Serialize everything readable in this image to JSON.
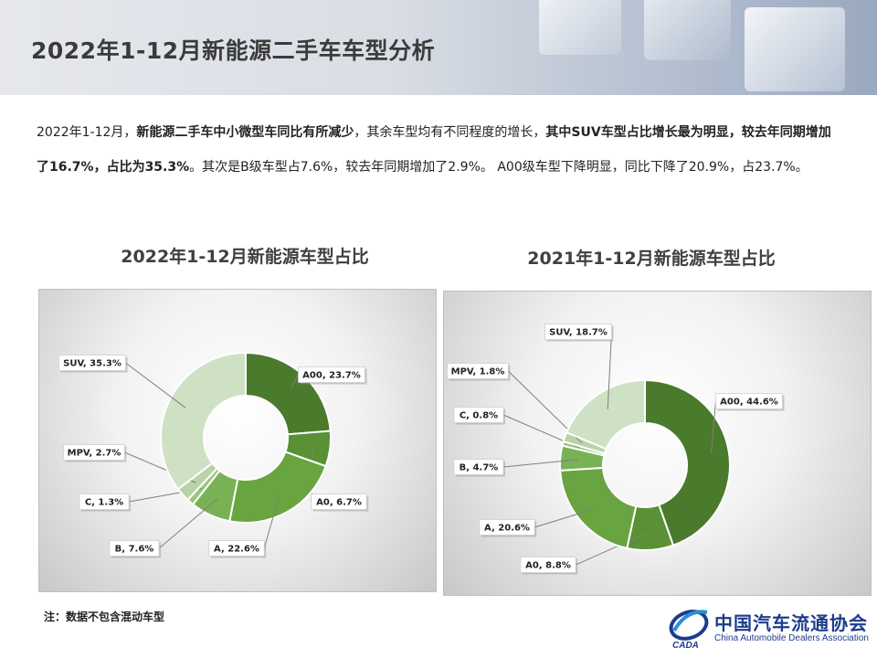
{
  "title": "2022年1-12月新能源二手车车型分析",
  "summary": {
    "p1": "2022年1-12月，",
    "b1": "新能源二手车中小微型车同比有所减少",
    "p2": "，其余车型均有不同程度的增长，",
    "b2": "其中SUV车型占比增长最为明显，较去年同期增加了16.7%，占比为35.3%",
    "p3": "。其次是B级车型占7.6%，较去年同期增加了2.9%。 A00级车型下降明显，同比下降了20.9%，占23.7%。"
  },
  "note": "注：数据不包含混动车型",
  "logo": {
    "cn": "中国汽车流通协会",
    "en": "China Automobile Dealers Association",
    "mark_text": "CADA"
  },
  "chart_data": [
    {
      "type": "pie",
      "style": "donut",
      "title": "2022年1-12月新能源车型占比",
      "categories": [
        "A00",
        "A0",
        "A",
        "B",
        "C",
        "MPV",
        "SUV"
      ],
      "values": [
        23.7,
        6.7,
        22.6,
        7.6,
        1.3,
        2.7,
        35.3
      ],
      "colors": [
        "#4a7a2c",
        "#5a9134",
        "#68a43f",
        "#79b155",
        "#9cc585",
        "#b8d3a8",
        "#cfe1c4"
      ],
      "data_labels": [
        "A00, 23.7%",
        "A0, 6.7%",
        "A, 22.6%",
        "B, 7.6%",
        "C, 1.3%",
        "MPV, 2.7%",
        "SUV, 35.3%"
      ]
    },
    {
      "type": "pie",
      "style": "donut",
      "title": "2021年1-12月新能源车型占比",
      "categories": [
        "A00",
        "A0",
        "A",
        "B",
        "C",
        "MPV",
        "SUV"
      ],
      "values": [
        44.6,
        8.8,
        20.6,
        4.7,
        0.8,
        1.8,
        18.7
      ],
      "colors": [
        "#4a7a2c",
        "#5a9134",
        "#68a43f",
        "#79b155",
        "#9cc585",
        "#b8d3a8",
        "#cfe1c4"
      ],
      "data_labels": [
        "A00, 44.6%",
        "A0, 8.8%",
        "A, 20.6%",
        "B, 4.7%",
        "C, 0.8%",
        "MPV, 1.8%",
        "SUV, 18.7%"
      ]
    }
  ]
}
